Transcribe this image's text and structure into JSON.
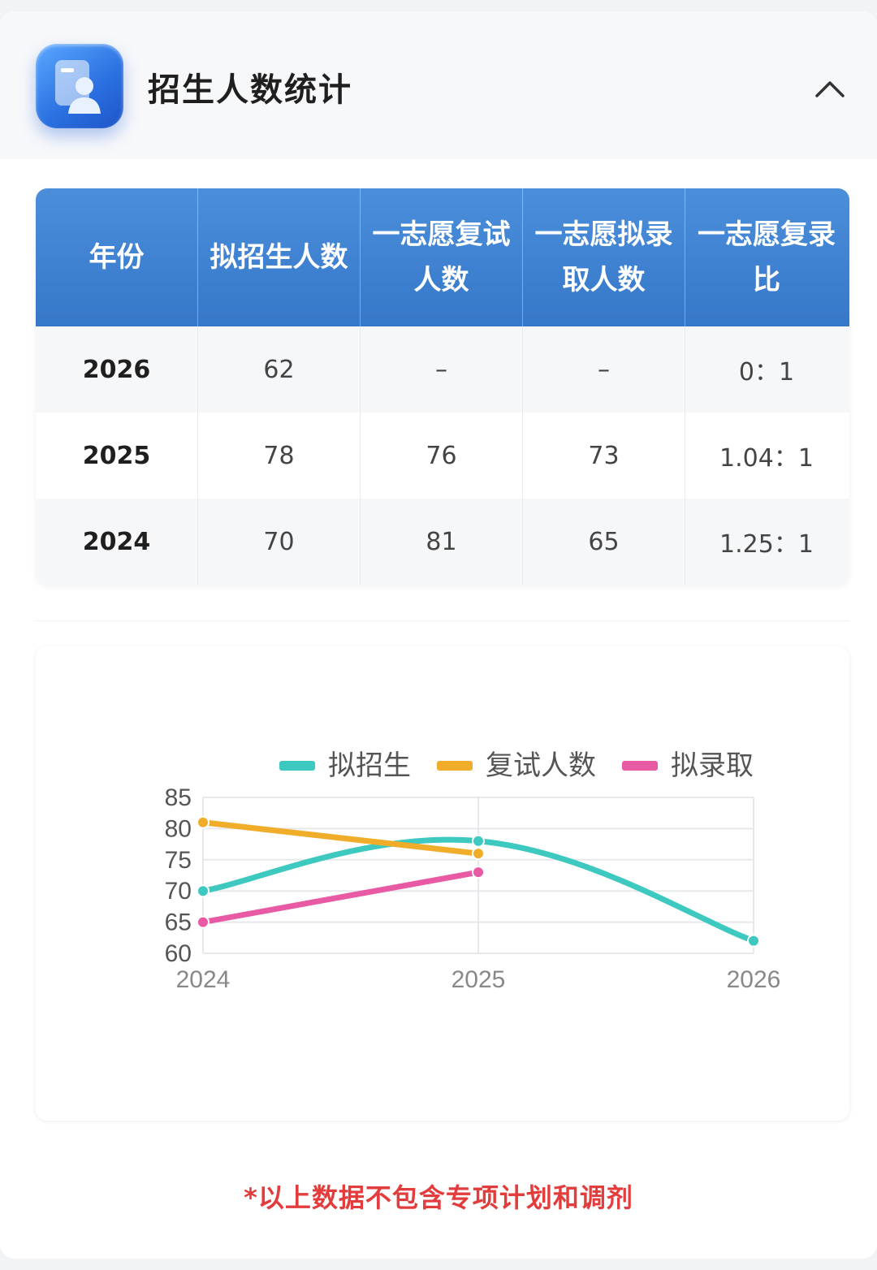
{
  "header": {
    "title": "招生人数统计",
    "icon": "user-profile-icon",
    "collapse_icon": "chevron-up-icon"
  },
  "table": {
    "headers": [
      "年份",
      "拟招生人数",
      "一志愿复试人数",
      "一志愿拟录取人数",
      "一志愿复录比"
    ],
    "rows": [
      [
        "2026",
        "62",
        "–",
        "–",
        "0：1"
      ],
      [
        "2025",
        "78",
        "76",
        "73",
        "1.04：1"
      ],
      [
        "2024",
        "70",
        "81",
        "65",
        "1.25：1"
      ]
    ],
    "header_color": "#3a7ccd"
  },
  "chart_data": {
    "type": "line",
    "categories": [
      "2024",
      "2025",
      "2026"
    ],
    "series": [
      {
        "name": "拟招生",
        "values": [
          70,
          78,
          62
        ],
        "color": "#3ec9c0",
        "smooth": true
      },
      {
        "name": "复试人数",
        "values": [
          81,
          76,
          null
        ],
        "color": "#f0ad2a"
      },
      {
        "name": "拟录取",
        "values": [
          65,
          73,
          null
        ],
        "color": "#e95aa4"
      }
    ],
    "ylim": [
      60,
      85
    ],
    "yticks": [
      60,
      65,
      70,
      75,
      80,
      85
    ],
    "legend": "top-right",
    "grid": true,
    "title": "",
    "xlabel": "",
    "ylabel": ""
  },
  "footnote": "*以上数据不包含专项计划和调剂"
}
